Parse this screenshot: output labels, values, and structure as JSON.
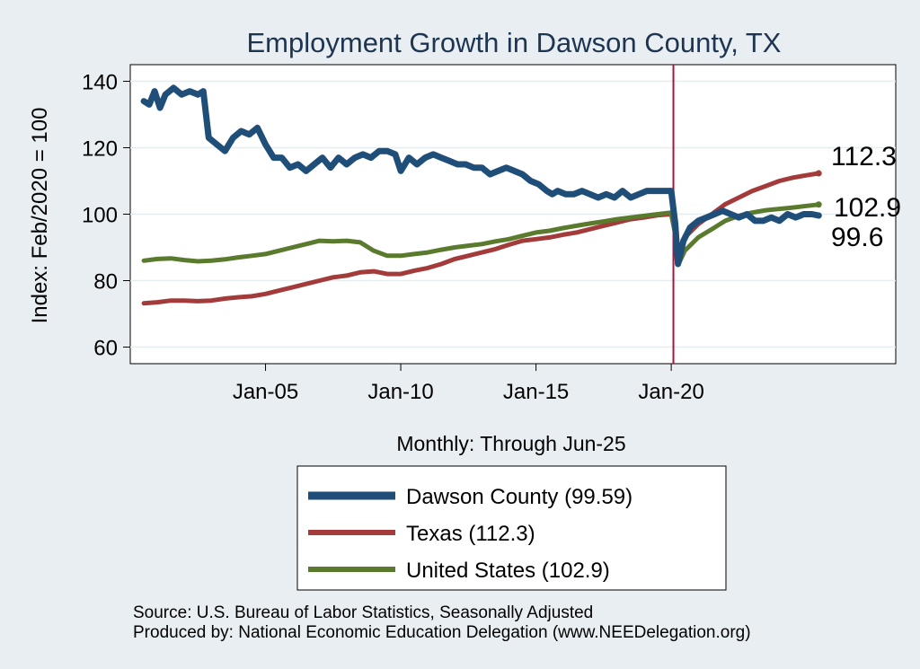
{
  "chart_data": {
    "type": "line",
    "title": "Employment Growth in Dawson  County, TX",
    "ylabel": "Index: Feb/2020 = 100",
    "xlabel": "Monthly: Through Jun-25",
    "ylim": [
      55,
      145
    ],
    "yticks": [
      60,
      80,
      100,
      120,
      140
    ],
    "xlim": [
      2000.0,
      2028.3
    ],
    "xticks": [
      {
        "label": "Jan-05",
        "value": 2005.0
      },
      {
        "label": "Jan-10",
        "value": 2010.0
      },
      {
        "label": "Jan-15",
        "value": 2015.0
      },
      {
        "label": "Jan-20",
        "value": 2020.0
      }
    ],
    "reference_line": {
      "x": 2020.08,
      "color": "#b0123a"
    },
    "grid": true,
    "legend_position": "bottom",
    "series": [
      {
        "name": "Dawson  County",
        "legend_label": "Dawson  County (99.59)",
        "end_label": "99.6",
        "color": "#1f4e79",
        "points": [
          [
            2000.5,
            134
          ],
          [
            2000.7,
            133
          ],
          [
            2000.9,
            137
          ],
          [
            2001.1,
            132
          ],
          [
            2001.3,
            136
          ],
          [
            2001.6,
            138
          ],
          [
            2001.9,
            136
          ],
          [
            2002.2,
            137
          ],
          [
            2002.5,
            136
          ],
          [
            2002.7,
            137
          ],
          [
            2002.9,
            123
          ],
          [
            2003.2,
            121
          ],
          [
            2003.5,
            119
          ],
          [
            2003.8,
            123
          ],
          [
            2004.1,
            125
          ],
          [
            2004.4,
            124
          ],
          [
            2004.7,
            126
          ],
          [
            2005.0,
            121
          ],
          [
            2005.3,
            117
          ],
          [
            2005.6,
            117
          ],
          [
            2005.9,
            114
          ],
          [
            2006.2,
            115
          ],
          [
            2006.5,
            113
          ],
          [
            2006.8,
            115
          ],
          [
            2007.1,
            117
          ],
          [
            2007.4,
            114
          ],
          [
            2007.7,
            117
          ],
          [
            2008.0,
            115
          ],
          [
            2008.3,
            117
          ],
          [
            2008.6,
            118
          ],
          [
            2008.9,
            117
          ],
          [
            2009.2,
            119
          ],
          [
            2009.5,
            119
          ],
          [
            2009.8,
            118
          ],
          [
            2010.0,
            113
          ],
          [
            2010.3,
            117
          ],
          [
            2010.6,
            115
          ],
          [
            2010.9,
            117
          ],
          [
            2011.2,
            118
          ],
          [
            2011.5,
            117
          ],
          [
            2011.8,
            116
          ],
          [
            2012.1,
            115
          ],
          [
            2012.4,
            115
          ],
          [
            2012.7,
            114
          ],
          [
            2013.0,
            114
          ],
          [
            2013.3,
            112
          ],
          [
            2013.6,
            113
          ],
          [
            2013.9,
            114
          ],
          [
            2014.2,
            113
          ],
          [
            2014.5,
            112
          ],
          [
            2014.8,
            110
          ],
          [
            2015.1,
            109
          ],
          [
            2015.4,
            107
          ],
          [
            2015.6,
            106
          ],
          [
            2015.8,
            107
          ],
          [
            2016.1,
            106
          ],
          [
            2016.4,
            106
          ],
          [
            2016.7,
            107
          ],
          [
            2017.0,
            106
          ],
          [
            2017.3,
            105
          ],
          [
            2017.6,
            106
          ],
          [
            2017.9,
            105
          ],
          [
            2018.2,
            107
          ],
          [
            2018.5,
            105
          ],
          [
            2018.8,
            106
          ],
          [
            2019.1,
            107
          ],
          [
            2019.4,
            107
          ],
          [
            2019.7,
            107
          ],
          [
            2020.0,
            107
          ],
          [
            2020.15,
            97
          ],
          [
            2020.25,
            85
          ],
          [
            2020.45,
            92
          ],
          [
            2020.7,
            96
          ],
          [
            2021.0,
            98
          ],
          [
            2021.3,
            99
          ],
          [
            2021.6,
            100
          ],
          [
            2021.9,
            101
          ],
          [
            2022.2,
            100
          ],
          [
            2022.5,
            99
          ],
          [
            2022.8,
            100
          ],
          [
            2023.1,
            98
          ],
          [
            2023.4,
            98
          ],
          [
            2023.7,
            99
          ],
          [
            2024.0,
            98
          ],
          [
            2024.3,
            100
          ],
          [
            2024.6,
            99
          ],
          [
            2024.9,
            100
          ],
          [
            2025.2,
            100
          ],
          [
            2025.45,
            99.6
          ]
        ]
      },
      {
        "name": "Texas",
        "legend_label": "Texas (112.3)",
        "end_label": "112.3",
        "color": "#a33b3b",
        "points": [
          [
            2000.5,
            73.2
          ],
          [
            2001.0,
            73.5
          ],
          [
            2001.5,
            74
          ],
          [
            2002.0,
            74
          ],
          [
            2002.5,
            73.8
          ],
          [
            2003.0,
            74
          ],
          [
            2003.5,
            74.6
          ],
          [
            2004.0,
            75
          ],
          [
            2004.5,
            75.3
          ],
          [
            2005.0,
            76
          ],
          [
            2005.5,
            77
          ],
          [
            2006.0,
            78
          ],
          [
            2006.5,
            79
          ],
          [
            2007.0,
            80
          ],
          [
            2007.5,
            81
          ],
          [
            2008.0,
            81.5
          ],
          [
            2008.5,
            82.5
          ],
          [
            2009.0,
            82.8
          ],
          [
            2009.5,
            82
          ],
          [
            2010.0,
            82
          ],
          [
            2010.5,
            83
          ],
          [
            2011.0,
            83.8
          ],
          [
            2011.5,
            85
          ],
          [
            2012.0,
            86.5
          ],
          [
            2012.5,
            87.5
          ],
          [
            2013.0,
            88.5
          ],
          [
            2013.5,
            89.5
          ],
          [
            2014.0,
            90.8
          ],
          [
            2014.5,
            92
          ],
          [
            2015.0,
            92.5
          ],
          [
            2015.5,
            93
          ],
          [
            2016.0,
            93.8
          ],
          [
            2016.5,
            94.5
          ],
          [
            2017.0,
            95.5
          ],
          [
            2017.5,
            96.5
          ],
          [
            2018.0,
            97.5
          ],
          [
            2018.5,
            98.5
          ],
          [
            2019.0,
            99
          ],
          [
            2019.5,
            99.7
          ],
          [
            2020.0,
            100
          ],
          [
            2020.2,
            92
          ],
          [
            2020.3,
            87
          ],
          [
            2020.5,
            93
          ],
          [
            2021.0,
            97
          ],
          [
            2021.5,
            100
          ],
          [
            2022.0,
            103
          ],
          [
            2022.5,
            105
          ],
          [
            2023.0,
            107
          ],
          [
            2023.5,
            108.5
          ],
          [
            2024.0,
            110
          ],
          [
            2024.5,
            111
          ],
          [
            2025.0,
            111.7
          ],
          [
            2025.45,
            112.3
          ]
        ]
      },
      {
        "name": "United States",
        "legend_label": "United States (102.9)",
        "end_label": "102.9",
        "color": "#5a7a2e",
        "points": [
          [
            2000.5,
            86
          ],
          [
            2001.0,
            86.5
          ],
          [
            2001.5,
            86.7
          ],
          [
            2002.0,
            86.2
          ],
          [
            2002.5,
            85.8
          ],
          [
            2003.0,
            86
          ],
          [
            2003.5,
            86.4
          ],
          [
            2004.0,
            87
          ],
          [
            2004.5,
            87.5
          ],
          [
            2005.0,
            88
          ],
          [
            2005.5,
            89
          ],
          [
            2006.0,
            90
          ],
          [
            2006.5,
            91
          ],
          [
            2007.0,
            92
          ],
          [
            2007.5,
            91.8
          ],
          [
            2008.0,
            92
          ],
          [
            2008.5,
            91.5
          ],
          [
            2009.0,
            89
          ],
          [
            2009.5,
            87.5
          ],
          [
            2010.0,
            87.5
          ],
          [
            2010.5,
            88
          ],
          [
            2011.0,
            88.5
          ],
          [
            2011.5,
            89.3
          ],
          [
            2012.0,
            90
          ],
          [
            2012.5,
            90.5
          ],
          [
            2013.0,
            91
          ],
          [
            2013.5,
            91.8
          ],
          [
            2014.0,
            92.5
          ],
          [
            2014.5,
            93.5
          ],
          [
            2015.0,
            94.5
          ],
          [
            2015.5,
            95
          ],
          [
            2016.0,
            95.8
          ],
          [
            2016.5,
            96.5
          ],
          [
            2017.0,
            97.2
          ],
          [
            2017.5,
            97.8
          ],
          [
            2018.0,
            98.5
          ],
          [
            2018.5,
            99
          ],
          [
            2019.0,
            99.5
          ],
          [
            2019.5,
            100
          ],
          [
            2020.0,
            100.5
          ],
          [
            2020.2,
            92
          ],
          [
            2020.3,
            85.5
          ],
          [
            2020.5,
            89
          ],
          [
            2021.0,
            93
          ],
          [
            2021.5,
            95.5
          ],
          [
            2022.0,
            98
          ],
          [
            2022.5,
            99.5
          ],
          [
            2023.0,
            100.5
          ],
          [
            2023.5,
            101.2
          ],
          [
            2024.0,
            101.6
          ],
          [
            2024.5,
            102
          ],
          [
            2025.0,
            102.5
          ],
          [
            2025.45,
            102.9
          ]
        ]
      }
    ]
  },
  "footer": {
    "source": "Source: U.S. Bureau of Labor Statistics, Seasonally Adjusted",
    "produced_by": "Produced by: National Economic Education Delegation (www.NEEDelegation.org)"
  }
}
